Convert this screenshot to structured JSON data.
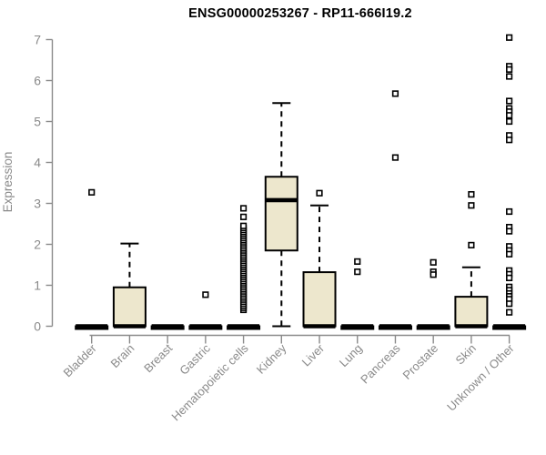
{
  "chart_data": {
    "type": "boxplot",
    "title": "ENSG00000253267 - RP11-666I19.2",
    "ylabel": "Expression",
    "xlabel": "",
    "ylim": [
      0,
      7
    ],
    "yticks": [
      0,
      1,
      2,
      3,
      4,
      5,
      6,
      7
    ],
    "grid": false,
    "legend": "none",
    "categories": [
      "Bladder",
      "Brain",
      "Breast",
      "Gastric",
      "Hematopoietic cells",
      "Kidney",
      "Liver",
      "Lung",
      "Pancreas",
      "Prostate",
      "Skin",
      "Unknown / Other"
    ],
    "boxes": [
      {
        "category": "Bladder",
        "q1": 0,
        "median": 0,
        "q3": 0,
        "whisker_low": 0,
        "whisker_high": 0,
        "outliers": [
          3.27
        ]
      },
      {
        "category": "Brain",
        "q1": 0,
        "median": 0,
        "q3": 0.95,
        "whisker_low": 0,
        "whisker_high": 2.02,
        "outliers": []
      },
      {
        "category": "Breast",
        "q1": 0,
        "median": 0,
        "q3": 0,
        "whisker_low": 0,
        "whisker_high": 0,
        "outliers": []
      },
      {
        "category": "Gastric",
        "q1": 0,
        "median": 0,
        "q3": 0,
        "whisker_low": 0,
        "whisker_high": 0,
        "outliers": [
          0.77
        ]
      },
      {
        "category": "Hematopoietic cells",
        "q1": 0,
        "median": 0,
        "q3": 0,
        "whisker_low": 0,
        "whisker_high": 0,
        "outliers": [
          0.4,
          0.45,
          0.5,
          0.55,
          0.6,
          0.65,
          0.7,
          0.75,
          0.8,
          0.85,
          0.9,
          0.95,
          1.0,
          1.05,
          1.1,
          1.15,
          1.2,
          1.25,
          1.3,
          1.35,
          1.4,
          1.45,
          1.5,
          1.55,
          1.6,
          1.65,
          1.7,
          1.75,
          1.8,
          1.85,
          1.9,
          1.95,
          2.0,
          2.05,
          2.1,
          2.15,
          2.2,
          2.25,
          2.3,
          2.35,
          2.4,
          2.45,
          2.67,
          2.88
        ]
      },
      {
        "category": "Kidney",
        "q1": 1.85,
        "median": 3.08,
        "q3": 3.65,
        "whisker_low": 0,
        "whisker_high": 5.45,
        "outliers": []
      },
      {
        "category": "Liver",
        "q1": 0,
        "median": 0,
        "q3": 1.32,
        "whisker_low": 0,
        "whisker_high": 2.95,
        "outliers": [
          3.25
        ]
      },
      {
        "category": "Lung",
        "q1": 0,
        "median": 0,
        "q3": 0,
        "whisker_low": 0,
        "whisker_high": 0,
        "outliers": [
          1.58,
          1.33
        ]
      },
      {
        "category": "Pancreas",
        "q1": 0,
        "median": 0,
        "q3": 0,
        "whisker_low": 0,
        "whisker_high": 0,
        "outliers": [
          5.68,
          4.12
        ]
      },
      {
        "category": "Prostate",
        "q1": 0,
        "median": 0,
        "q3": 0,
        "whisker_low": 0,
        "whisker_high": 0,
        "outliers": [
          1.56,
          1.33,
          1.26
        ]
      },
      {
        "category": "Skin",
        "q1": 0,
        "median": 0,
        "q3": 0.72,
        "whisker_low": 0,
        "whisker_high": 1.44,
        "outliers": [
          3.22,
          2.95,
          1.98
        ]
      },
      {
        "category": "Unknown / Other",
        "q1": 0,
        "median": 0,
        "q3": 0,
        "whisker_low": 0,
        "whisker_high": 0,
        "outliers": [
          7.05,
          6.35,
          6.27,
          6.1,
          5.5,
          5.32,
          5.24,
          5.15,
          5.0,
          4.66,
          4.55,
          2.8,
          2.42,
          2.32,
          1.95,
          1.85,
          1.76,
          1.36,
          1.27,
          1.18,
          0.96,
          0.88,
          0.8,
          0.73,
          0.66,
          0.55,
          0.34
        ]
      }
    ],
    "colors": {
      "box_fill": "#EDE7CD",
      "box_border": "#000000",
      "median": "#000000",
      "whisker": "#000000",
      "outlier_stroke": "#000000",
      "outlier_fill": "#FFFFFF",
      "axis": "#8A8A8A",
      "tick_text": "#8A8A8A",
      "title_text": "#000000"
    }
  }
}
